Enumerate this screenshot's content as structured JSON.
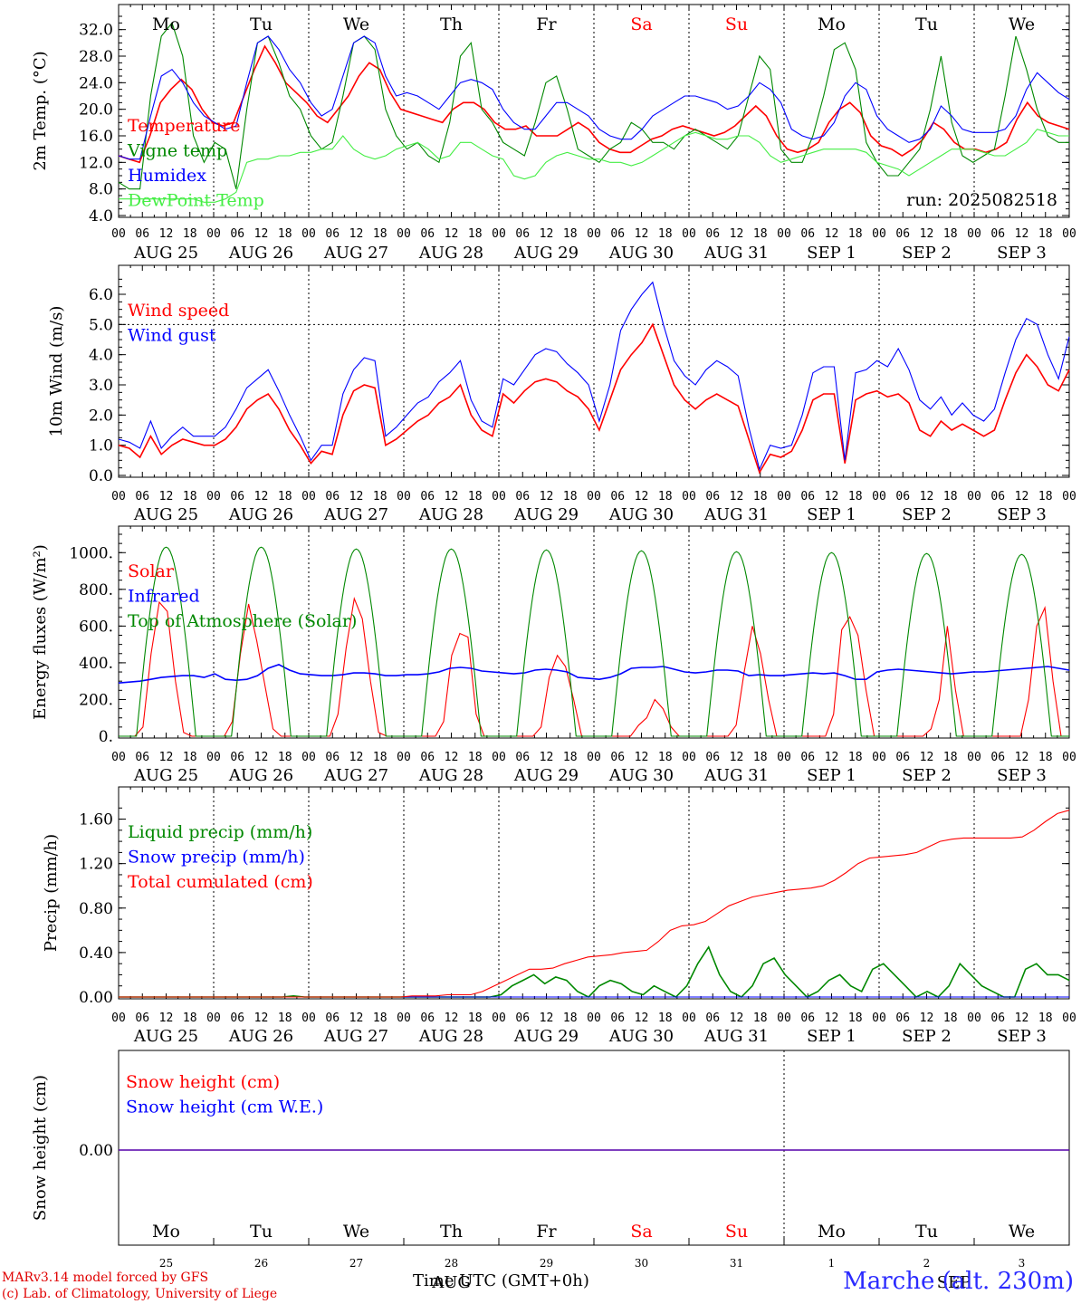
{
  "chart_data": [
    {
      "type": "line",
      "ylabel": "2m Temp. (°C)",
      "ylim": [
        4,
        34
      ],
      "yticks": [
        "32.0",
        "28.0",
        "24.0",
        "20.0",
        "16.0",
        "12.0",
        "8.0",
        "4.0"
      ],
      "annotation": "run: 2025082518",
      "series": [
        {
          "name": "Temperature",
          "color": "#ff0000",
          "values": [
            13,
            12.5,
            12,
            16,
            21,
            23,
            24.5,
            23,
            20,
            18,
            17.5,
            18,
            22,
            26,
            29.5,
            27,
            24,
            22.5,
            21,
            19,
            18,
            20,
            22,
            25,
            27,
            26,
            22.5,
            20,
            19.5,
            19,
            18.5,
            18,
            20,
            21,
            21,
            20,
            18,
            17,
            17,
            17.5,
            16,
            16,
            16,
            17,
            18,
            17,
            15,
            14,
            13.5,
            13.5,
            14.5,
            15.5,
            16,
            17,
            17.5,
            17,
            16.5,
            16,
            16.5,
            17.5,
            19,
            20.5,
            19,
            16,
            14,
            13.5,
            14,
            15,
            18,
            20,
            21,
            19.5,
            16,
            14.5,
            14,
            13,
            14,
            15.5,
            18,
            17,
            15,
            14,
            14,
            13.5,
            14,
            15,
            18.5,
            21,
            19,
            18,
            17.5,
            17
          ]
        },
        {
          "name": "Vigne temp",
          "color": "#008800",
          "values": [
            9,
            8,
            8,
            22,
            31,
            33,
            28,
            16,
            12,
            15,
            14,
            8,
            20,
            30,
            31,
            27,
            22,
            20,
            16,
            14,
            15,
            22,
            30,
            31,
            29,
            20,
            16,
            14,
            15,
            13,
            12,
            18,
            28,
            30,
            20,
            18,
            15,
            14,
            13,
            18,
            24,
            25,
            20,
            14,
            13,
            12,
            14,
            15,
            18,
            17,
            15,
            15,
            14,
            16,
            17,
            16,
            15,
            14,
            16,
            22,
            28,
            26,
            14,
            12,
            12,
            16,
            22,
            29,
            30,
            26,
            15,
            12,
            10,
            10,
            12,
            14,
            20,
            28,
            18,
            13,
            12,
            13,
            14,
            22,
            31,
            26,
            20,
            16,
            15,
            15
          ]
        },
        {
          "name": "Humidex",
          "color": "#0000ff",
          "values": [
            13,
            12.5,
            12.5,
            19,
            25,
            26,
            24,
            21,
            19,
            18,
            17,
            17.5,
            24,
            30,
            31,
            29,
            26,
            24,
            21,
            19,
            20,
            25,
            30,
            31,
            30,
            25,
            22,
            22.5,
            22,
            21,
            20,
            22,
            24,
            24.5,
            24,
            23,
            20,
            18,
            17,
            17,
            19,
            21,
            21,
            20,
            19,
            17,
            16,
            15.5,
            15.5,
            17,
            19,
            20,
            21,
            22,
            22,
            21.5,
            21,
            20,
            20.5,
            22,
            24,
            23,
            21,
            17,
            16,
            15.5,
            16,
            18,
            22,
            24,
            23,
            19,
            17,
            16,
            15,
            15.5,
            17,
            20.5,
            19,
            17,
            16.5,
            16.5,
            16.5,
            17,
            19,
            23,
            25.5,
            24,
            22.5,
            21.5
          ]
        },
        {
          "name": "DewPoint Temp",
          "color": "#44ee44",
          "values": [
            6.5,
            6.5,
            6.5,
            6.5,
            6.5,
            6.5,
            6.5,
            6.5,
            6,
            6,
            6.5,
            7.5,
            12,
            12.5,
            12.5,
            13,
            13,
            13.5,
            13.5,
            14,
            14,
            16,
            14,
            13,
            12.5,
            13,
            14,
            14.5,
            15,
            14,
            12.5,
            13,
            15,
            15,
            14,
            13,
            12.5,
            10,
            9.5,
            10,
            12,
            13,
            13.5,
            13,
            12.5,
            12.5,
            12,
            12,
            11.5,
            12,
            13,
            14,
            15,
            16,
            16.5,
            16,
            15.5,
            15.5,
            16,
            16,
            15,
            13,
            12,
            12.5,
            13,
            13.5,
            14,
            14,
            14,
            14,
            13.5,
            12,
            11.5,
            11,
            10,
            11,
            12,
            13,
            14,
            14,
            14,
            13.5,
            13,
            13,
            14,
            15,
            17,
            16.5,
            16,
            16
          ]
        }
      ]
    },
    {
      "type": "line",
      "ylabel": "10m Wind (m/s)",
      "ylim": [
        0,
        6.6
      ],
      "yticks": [
        "6.0",
        "5.0",
        "4.0",
        "3.0",
        "2.0",
        "1.0",
        "0.0"
      ],
      "series": [
        {
          "name": "Wind speed",
          "color": "#ff0000",
          "values": [
            1.0,
            0.9,
            0.6,
            1.3,
            0.7,
            1.0,
            1.2,
            1.1,
            1.0,
            1.0,
            1.2,
            1.6,
            2.2,
            2.5,
            2.7,
            2.2,
            1.5,
            1.0,
            0.4,
            0.8,
            0.7,
            2.0,
            2.8,
            3.0,
            2.9,
            1.0,
            1.2,
            1.5,
            1.8,
            2.0,
            2.4,
            2.6,
            3.0,
            2.0,
            1.5,
            1.3,
            2.7,
            2.4,
            2.8,
            3.1,
            3.2,
            3.1,
            2.8,
            2.6,
            2.2,
            1.5,
            2.5,
            3.5,
            4.0,
            4.4,
            5.0,
            4.0,
            3.0,
            2.5,
            2.2,
            2.5,
            2.7,
            2.5,
            2.3,
            1.2,
            0.1,
            0.7,
            0.6,
            0.8,
            1.5,
            2.5,
            2.7,
            2.7,
            0.4,
            2.5,
            2.7,
            2.8,
            2.6,
            2.7,
            2.4,
            1.5,
            1.3,
            1.8,
            1.5,
            1.7,
            1.5,
            1.3,
            1.5,
            2.5,
            3.4,
            4.0,
            3.6,
            3.0,
            2.8,
            3.5
          ]
        },
        {
          "name": "Wind gust",
          "color": "#0000ff",
          "values": [
            1.2,
            1.1,
            0.9,
            1.8,
            0.9,
            1.3,
            1.6,
            1.3,
            1.3,
            1.3,
            1.6,
            2.2,
            2.9,
            3.2,
            3.5,
            2.8,
            2.0,
            1.3,
            0.5,
            1.0,
            1.0,
            2.7,
            3.5,
            3.9,
            3.8,
            1.3,
            1.6,
            2.0,
            2.4,
            2.6,
            3.1,
            3.4,
            3.8,
            2.5,
            1.8,
            1.6,
            3.2,
            3.0,
            3.5,
            4.0,
            4.2,
            4.1,
            3.7,
            3.4,
            3.0,
            1.8,
            3.0,
            4.8,
            5.5,
            6.0,
            6.4,
            5.0,
            3.8,
            3.3,
            3.0,
            3.5,
            3.8,
            3.6,
            3.3,
            1.6,
            0.2,
            1.0,
            0.9,
            1.0,
            2.0,
            3.4,
            3.6,
            3.6,
            0.5,
            3.4,
            3.5,
            3.8,
            3.6,
            4.2,
            3.5,
            2.5,
            2.2,
            2.6,
            2.0,
            2.4,
            2.0,
            1.8,
            2.2,
            3.4,
            4.5,
            5.2,
            5.0,
            4.0,
            3.2,
            4.6
          ]
        }
      ]
    },
    {
      "type": "line",
      "ylabel": "Energy fluxes (W/m²)",
      "ylim": [
        0,
        1100
      ],
      "yticks": [
        "1000.",
        "800.",
        "600.",
        "400.",
        "200.",
        "0."
      ],
      "series": [
        {
          "name": "Solar",
          "color": "#ff0000",
          "values": [
            0,
            0,
            0,
            50,
            450,
            730,
            680,
            300,
            20,
            0,
            0,
            0,
            0,
            0,
            80,
            450,
            720,
            520,
            280,
            40,
            0,
            0,
            0,
            0,
            0,
            0,
            0,
            120,
            480,
            750,
            640,
            300,
            20,
            0,
            0,
            0,
            0,
            0,
            0,
            0,
            80,
            440,
            560,
            540,
            120,
            0,
            0,
            0,
            0,
            0,
            0,
            0,
            50,
            320,
            440,
            380,
            200,
            0,
            0,
            0,
            0,
            0,
            0,
            0,
            60,
            100,
            200,
            150,
            50,
            0,
            0,
            0,
            0,
            0,
            0,
            0,
            60,
            350,
            600,
            450,
            200,
            0,
            0,
            0,
            0,
            0,
            0,
            0,
            120,
            580,
            650,
            550,
            250,
            0,
            0,
            0,
            0,
            0,
            0,
            0,
            40,
            200,
            600,
            250,
            0,
            0,
            0,
            0,
            0,
            0,
            0,
            0,
            200,
            600,
            700,
            300,
            0,
            0
          ]
        },
        {
          "name": "Infrared",
          "color": "#0000ff",
          "values": [
            290,
            295,
            300,
            310,
            320,
            325,
            330,
            330,
            320,
            340,
            310,
            305,
            310,
            330,
            370,
            390,
            360,
            340,
            335,
            330,
            330,
            335,
            345,
            345,
            340,
            330,
            330,
            335,
            335,
            340,
            350,
            370,
            375,
            370,
            355,
            350,
            345,
            340,
            345,
            360,
            365,
            360,
            350,
            320,
            315,
            310,
            320,
            340,
            370,
            375,
            375,
            380,
            365,
            350,
            345,
            350,
            360,
            360,
            355,
            330,
            335,
            330,
            330,
            335,
            340,
            345,
            340,
            345,
            330,
            310,
            310,
            350,
            360,
            365,
            360,
            355,
            350,
            345,
            340,
            345,
            350,
            350,
            355,
            360,
            365,
            370,
            375,
            380,
            370,
            360
          ]
        },
        {
          "name": "Top of Atmosphere (Solar)",
          "color": "#008800",
          "values": [
            1030,
            1030,
            1020,
            1020,
            1015,
            1010,
            1005,
            1000,
            995,
            990
          ]
        }
      ]
    },
    {
      "type": "line",
      "ylabel": "Precip (mm/h)",
      "ylim": [
        0,
        1.8
      ],
      "yticks": [
        "1.60",
        "1.20",
        "0.80",
        "0.40",
        "0.00"
      ],
      "series": [
        {
          "name": "Liquid precip (mm/h)",
          "color": "#008800",
          "values": [
            0,
            0,
            0,
            0,
            0,
            0,
            0,
            0,
            0,
            0,
            0,
            0,
            0,
            0,
            0,
            0,
            0.01,
            0,
            0,
            0,
            0,
            0,
            0,
            0,
            0,
            0,
            0,
            0,
            0,
            0,
            0,
            0,
            0,
            0,
            0,
            0.02,
            0.1,
            0.15,
            0.2,
            0.12,
            0.18,
            0.15,
            0.05,
            0,
            0.1,
            0.15,
            0.12,
            0.05,
            0.02,
            0.1,
            0.05,
            0,
            0.1,
            0.3,
            0.45,
            0.2,
            0.05,
            0,
            0.1,
            0.3,
            0.35,
            0.2,
            0.1,
            0,
            0.05,
            0.15,
            0.2,
            0.1,
            0.05,
            0.25,
            0.3,
            0.2,
            0.1,
            0,
            0.05,
            0,
            0.1,
            0.3,
            0.2,
            0.1,
            0.05,
            0,
            0,
            0.25,
            0.3,
            0.2,
            0.2,
            0.15
          ]
        },
        {
          "name": "Snow precip (mm/h)",
          "color": "#0000ff",
          "values": [
            0,
            0,
            0,
            0,
            0,
            0,
            0,
            0,
            0,
            0
          ]
        },
        {
          "name": "Total cumulated (cm)",
          "color": "#ff0000",
          "values": [
            0,
            0,
            0,
            0,
            0,
            0,
            0,
            0,
            0,
            0,
            0,
            0,
            0,
            0,
            0,
            0,
            0,
            0,
            0,
            0,
            0,
            0,
            0,
            0,
            0,
            0.01,
            0.01,
            0.01,
            0.02,
            0.02,
            0.02,
            0.05,
            0.1,
            0.15,
            0.2,
            0.25,
            0.25,
            0.26,
            0.3,
            0.33,
            0.36,
            0.37,
            0.38,
            0.4,
            0.41,
            0.42,
            0.5,
            0.6,
            0.64,
            0.65,
            0.68,
            0.75,
            0.82,
            0.86,
            0.9,
            0.92,
            0.94,
            0.96,
            0.97,
            0.98,
            1.0,
            1.05,
            1.12,
            1.2,
            1.25,
            1.26,
            1.27,
            1.28,
            1.3,
            1.35,
            1.4,
            1.42,
            1.43,
            1.43,
            1.43,
            1.43,
            1.43,
            1.44,
            1.5,
            1.58,
            1.65,
            1.68
          ]
        }
      ]
    },
    {
      "type": "line",
      "ylabel": "Snow height (cm)",
      "yticks": [
        "0.00"
      ],
      "series": [
        {
          "name": "Snow height (cm)",
          "color": "#ff0000",
          "values": [
            0,
            0
          ]
        },
        {
          "name": "Snow height (cm W.E.)",
          "color": "#0000ff",
          "values": [
            0,
            0
          ]
        }
      ]
    }
  ],
  "x_axis": {
    "hour_ticks": [
      "00",
      "06",
      "12",
      "18"
    ],
    "end_tick": "00",
    "dates": [
      "AUG 25",
      "AUG 26",
      "AUG 27",
      "AUG 28",
      "AUG 29",
      "AUG 30",
      "AUG 31",
      "SEP  1",
      "SEP  2",
      "SEP  3"
    ],
    "weekdays": [
      "Mo",
      "Tu",
      "We",
      "Th",
      "Fr",
      "Sa",
      "Su",
      "Mo",
      "Tu",
      "We"
    ],
    "weekday_colors": [
      "#000000",
      "#000000",
      "#000000",
      "#000000",
      "#000000",
      "#ff0000",
      "#ff0000",
      "#000000",
      "#000000",
      "#000000"
    ],
    "bottom_numbers": [
      "25",
      "26",
      "27",
      "28",
      "29",
      "30",
      "31",
      "1",
      "2",
      "3"
    ],
    "bottom_month_labels": [
      "AUG",
      "SEP"
    ],
    "time_label": "Time UTC (GMT+0h)"
  },
  "footer": {
    "credit_line1": "MARv3.14 model forced by GFS",
    "credit_line2": "(c) Lab. of Climatology, University of Liege",
    "location": "Marche (alt. 230m)"
  }
}
